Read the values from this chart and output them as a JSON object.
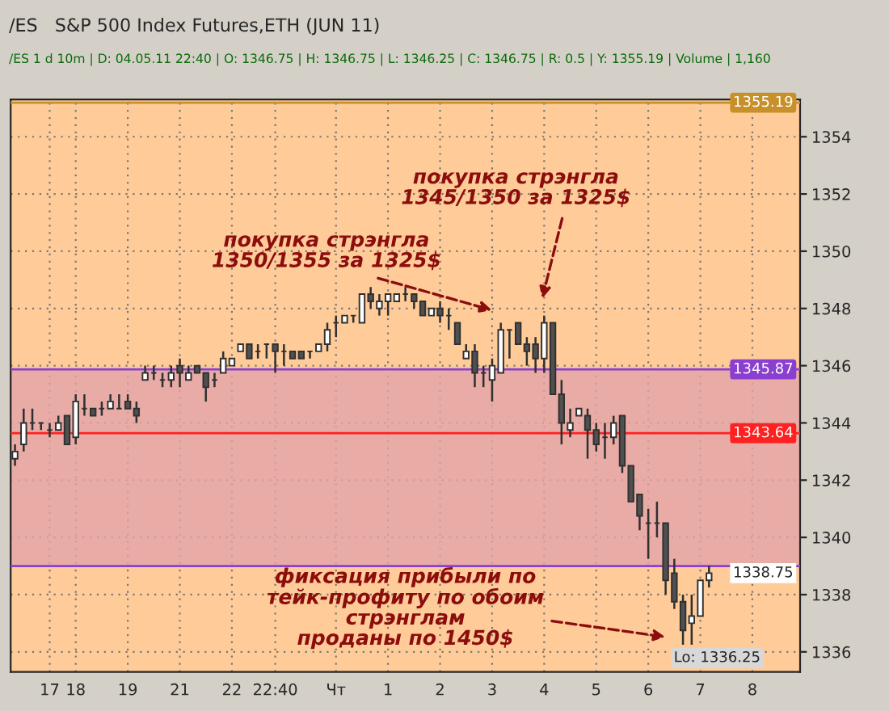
{
  "chart_data": {
    "type": "candlestick",
    "title": "/ES   S&P 500 Index Futures,ETH (JUN 11)",
    "subtitle": "/ES 1 d 10m | D: 04.05.11 22:40 | O: 1346.75 | H: 1346.75 | L: 1346.25 | C: 1346.75 | R: 0.5 | Y: 1355.19 | Volume | 1,160",
    "categories": [
      null,
      null,
      null,
      null,
      "17",
      null,
      null,
      "18",
      null,
      null,
      null,
      null,
      null,
      "19",
      null,
      null,
      null,
      null,
      null,
      "21",
      null,
      null,
      null,
      null,
      null,
      "22",
      null,
      null,
      null,
      null,
      "22:40",
      null,
      null,
      null,
      null,
      null,
      null,
      "Чт",
      null,
      null,
      null,
      null,
      null,
      "1",
      null,
      null,
      null,
      null,
      null,
      "2",
      null,
      null,
      null,
      null,
      null,
      "3",
      null,
      null,
      null,
      null,
      null,
      "4",
      null,
      null,
      null,
      null,
      null,
      "5",
      null,
      null,
      null,
      null,
      null,
      "6",
      null,
      null,
      null,
      null,
      null,
      "7",
      null,
      null,
      null,
      null,
      null,
      "8",
      null,
      null,
      null,
      null,
      null
    ],
    "ohlc": [
      [
        1342.75,
        1343.25,
        1342.5,
        1343.0
      ],
      [
        1343.25,
        1344.5,
        1343.0,
        1344.0
      ],
      [
        1344.0,
        1344.5,
        1343.75,
        1344.0
      ],
      [
        1344.0,
        1344.0,
        1343.75,
        1344.0
      ],
      [
        1343.75,
        1344.0,
        1343.5,
        1343.75
      ],
      [
        1343.75,
        1344.25,
        1343.75,
        1344.0
      ],
      [
        1344.25,
        1344.25,
        1343.25,
        1343.25
      ],
      [
        1343.5,
        1345.0,
        1343.25,
        1344.75
      ],
      [
        1344.5,
        1345.0,
        1344.25,
        1344.5
      ],
      [
        1344.5,
        1344.5,
        1344.25,
        1344.25
      ],
      [
        1344.5,
        1344.75,
        1344.25,
        1344.5
      ],
      [
        1344.5,
        1345.0,
        1344.5,
        1344.75
      ],
      [
        1344.5,
        1345.0,
        1344.5,
        1344.5
      ],
      [
        1344.75,
        1345.0,
        1344.5,
        1344.5
      ],
      [
        1344.5,
        1344.75,
        1344.0,
        1344.25
      ],
      [
        1345.5,
        1346.0,
        1345.5,
        1345.75
      ],
      [
        1345.75,
        1346.0,
        1345.5,
        1345.75
      ],
      [
        1345.5,
        1345.75,
        1345.25,
        1345.5
      ],
      [
        1345.5,
        1346.0,
        1345.25,
        1345.75
      ],
      [
        1346.0,
        1346.25,
        1345.25,
        1345.75
      ],
      [
        1345.5,
        1346.0,
        1345.5,
        1345.75
      ],
      [
        1346.0,
        1346.0,
        1345.75,
        1345.75
      ],
      [
        1345.75,
        1345.75,
        1344.75,
        1345.25
      ],
      [
        1345.5,
        1345.75,
        1345.25,
        1345.5
      ],
      [
        1345.75,
        1346.5,
        1345.75,
        1346.25
      ],
      [
        1346.0,
        1346.25,
        1346.0,
        1346.25
      ],
      [
        1346.5,
        1346.75,
        1346.5,
        1346.75
      ],
      [
        1346.75,
        1346.75,
        1346.25,
        1346.25
      ],
      [
        1346.5,
        1346.75,
        1346.25,
        1346.5
      ],
      [
        1346.75,
        1346.75,
        1346.25,
        1346.75
      ],
      [
        1346.75,
        1346.75,
        1345.75,
        1346.5
      ],
      [
        1346.5,
        1346.75,
        1346.0,
        1346.5
      ],
      [
        1346.5,
        1346.5,
        1346.25,
        1346.25
      ],
      [
        1346.5,
        1346.5,
        1346.25,
        1346.25
      ],
      [
        1346.5,
        1346.5,
        1346.25,
        1346.5
      ],
      [
        1346.5,
        1346.75,
        1346.5,
        1346.75
      ],
      [
        1346.75,
        1347.5,
        1346.5,
        1347.25
      ],
      [
        1347.5,
        1347.75,
        1347.0,
        1347.5
      ],
      [
        1347.5,
        1347.75,
        1347.5,
        1347.75
      ],
      [
        1347.75,
        1347.75,
        1347.5,
        1347.75
      ],
      [
        1347.5,
        1348.5,
        1347.5,
        1348.5
      ],
      [
        1348.5,
        1348.75,
        1348.0,
        1348.25
      ],
      [
        1348.0,
        1348.5,
        1347.75,
        1348.25
      ],
      [
        1348.25,
        1348.5,
        1347.75,
        1348.5
      ],
      [
        1348.25,
        1348.5,
        1348.25,
        1348.5
      ],
      [
        1348.5,
        1348.75,
        1348.25,
        1348.5
      ],
      [
        1348.5,
        1348.5,
        1348.0,
        1348.25
      ],
      [
        1348.25,
        1348.25,
        1347.75,
        1347.75
      ],
      [
        1347.75,
        1348.0,
        1347.75,
        1348.0
      ],
      [
        1348.0,
        1348.25,
        1347.5,
        1347.75
      ],
      [
        1347.75,
        1348.0,
        1347.25,
        1347.75
      ],
      [
        1347.5,
        1347.5,
        1346.75,
        1346.75
      ],
      [
        1346.25,
        1346.75,
        1346.25,
        1346.5
      ],
      [
        1346.5,
        1346.75,
        1345.25,
        1345.75
      ],
      [
        1345.75,
        1346.0,
        1345.25,
        1345.75
      ],
      [
        1345.5,
        1346.25,
        1344.75,
        1346.0
      ],
      [
        1345.75,
        1347.5,
        1345.75,
        1347.25
      ],
      [
        1347.25,
        1347.25,
        1346.25,
        1347.25
      ],
      [
        1347.5,
        1347.5,
        1346.75,
        1346.75
      ],
      [
        1346.75,
        1347.0,
        1346.0,
        1346.5
      ],
      [
        1346.75,
        1347.0,
        1345.75,
        1346.25
      ],
      [
        1346.25,
        1347.75,
        1345.75,
        1347.5
      ],
      [
        1347.5,
        1347.5,
        1345.0,
        1345.0
      ],
      [
        1345.0,
        1345.5,
        1343.25,
        1344.0
      ],
      [
        1343.75,
        1344.5,
        1343.5,
        1344.0
      ],
      [
        1344.25,
        1344.5,
        1344.25,
        1344.5
      ],
      [
        1344.25,
        1344.5,
        1342.75,
        1343.75
      ],
      [
        1343.75,
        1344.0,
        1343.0,
        1343.25
      ],
      [
        1343.5,
        1344.0,
        1342.75,
        1343.5
      ],
      [
        1343.5,
        1344.25,
        1343.25,
        1344.0
      ],
      [
        1344.25,
        1344.25,
        1342.25,
        1342.5
      ],
      [
        1342.5,
        1342.5,
        1341.25,
        1341.25
      ],
      [
        1341.5,
        1341.5,
        1340.25,
        1340.75
      ],
      [
        1340.5,
        1341.0,
        1339.25,
        1340.5
      ],
      [
        1340.5,
        1341.25,
        1340.0,
        1340.5
      ],
      [
        1340.5,
        1340.5,
        1338.0,
        1338.5
      ],
      [
        1338.75,
        1339.25,
        1337.5,
        1337.75
      ],
      [
        1337.75,
        1338.0,
        1336.25,
        1336.75
      ],
      [
        1337.0,
        1338.0,
        1336.25,
        1337.25
      ],
      [
        1337.25,
        1338.5,
        1337.25,
        1338.5
      ],
      [
        1338.5,
        1339.0,
        1338.25,
        1338.75
      ],
      null,
      null,
      null,
      null,
      null,
      null,
      null,
      null,
      null,
      null
    ],
    "colors": [
      "#ffffff",
      "#ffffff",
      "#303030",
      "#303030",
      "#303030",
      "#ffffff",
      "#505050",
      "#ffffff",
      "#303030",
      "#505050",
      "#303030",
      "#ffffff",
      "#303030",
      "#505050",
      "#505050",
      "#ffffff",
      "#303030",
      "#303030",
      "#ffffff",
      "#505050",
      "#ffffff",
      "#505050",
      "#505050",
      "#303030",
      "#ffffff",
      "#ffffff",
      "#ffffff",
      "#505050",
      "#303030",
      "#303030",
      "#505050",
      "#303030",
      "#505050",
      "#505050",
      "#303030",
      "#ffffff",
      "#ffffff",
      "#303030",
      "#ffffff",
      "#303030",
      "#ffffff",
      "#505050",
      "#ffffff",
      "#ffffff",
      "#ffffff",
      "#303030",
      "#505050",
      "#505050",
      "#ffffff",
      "#505050",
      "#303030",
      "#505050",
      "#ffffff",
      "#505050",
      "#303030",
      "#ffffff",
      "#ffffff",
      "#303030",
      "#505050",
      "#505050",
      "#505050",
      "#ffffff",
      "#505050",
      "#505050",
      "#ffffff",
      "#ffffff",
      "#505050",
      "#505050",
      "#303030",
      "#ffffff",
      "#505050",
      "#505050",
      "#505050",
      "#303030",
      "#303030",
      "#505050",
      "#505050",
      "#505050",
      "#ffffff",
      "#ffffff",
      "#ffffff",
      null,
      null,
      null,
      null,
      null,
      null,
      null,
      null,
      null,
      null
    ],
    "ylim": [
      1335.3,
      1355.3
    ],
    "yticks": [
      1336,
      1338,
      1340,
      1342,
      1344,
      1346,
      1348,
      1350,
      1352,
      1354
    ],
    "grid": true,
    "bands": [
      {
        "axis": "y",
        "from": 1339.0,
        "to": 1345.87,
        "color": "#e3a2a8"
      }
    ],
    "ref_lines": [
      {
        "axis": "y",
        "value": 1355.19,
        "label": "1355.19",
        "color": "#c8902a"
      },
      {
        "axis": "y",
        "value": 1345.87,
        "label": "1345.87",
        "color": "#8a3fd0"
      },
      {
        "axis": "y",
        "value": 1343.64,
        "label": "1343.64",
        "color": "#ff2020"
      },
      {
        "axis": "y",
        "value": 1339.0,
        "color": "#8a3fd0"
      }
    ],
    "annotations": [
      "покупка стрэнгла\n1350/1355 за 1325$",
      "покупка стрэнгла\n1345/1350 за 1325$",
      "фиксация прибыли по\nтейк-профиту по обоим\nстрэнглам\nпроданы по 1450$",
      {
        "text": "1338.75",
        "y": 1338.75
      },
      "Lo: 1336.25"
    ]
  }
}
